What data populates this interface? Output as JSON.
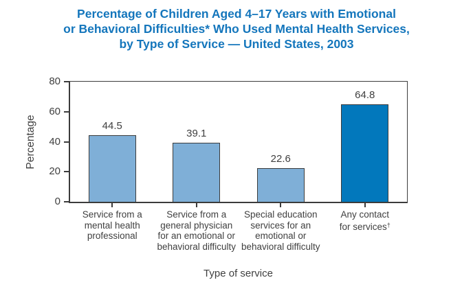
{
  "title": {
    "lines": [
      "Percentage of Children Aged 4–17 Years with Emotional",
      "or Behavioral Difficulties* Who Used Mental Health Services,",
      "by Type of Service — United States, 2003"
    ],
    "color": "#1476BC"
  },
  "chart_data": {
    "type": "bar",
    "title": "Percentage of Children Aged 4–17 Years with Emotional or Behavioral Difficulties* Who Used Mental Health Services, by Type of Service — United States, 2003",
    "categories": [
      "Service from a mental health professional",
      "Service from a general physician for an emotional or behavioral difficulty",
      "Special education services for an emotional or behavioral difficulty",
      "Any contact for services†"
    ],
    "category_lines": [
      [
        "Service from a",
        "mental health",
        "professional"
      ],
      [
        "Service from a",
        "general physician",
        "for an emotional or",
        "behavioral difficulty"
      ],
      [
        "Special education",
        "services for an",
        "emotional or",
        "behavioral difficulty"
      ],
      [
        "Any contact",
        "for services†"
      ]
    ],
    "values": [
      44.5,
      39.1,
      22.6,
      64.8
    ],
    "value_labels": [
      "44.5",
      "39.1",
      "22.6",
      "64.8"
    ],
    "xlabel": "Type of service",
    "ylabel": "Percentage",
    "ylim": [
      0,
      80
    ],
    "yticks": [
      0,
      20,
      40,
      60,
      80
    ],
    "bar_colors": [
      "#7FAFD7",
      "#7FAFD7",
      "#7FAFD7",
      "#0278BC"
    ],
    "bar_border_color": "#3b3b3b",
    "grid": false,
    "legend": "none"
  }
}
